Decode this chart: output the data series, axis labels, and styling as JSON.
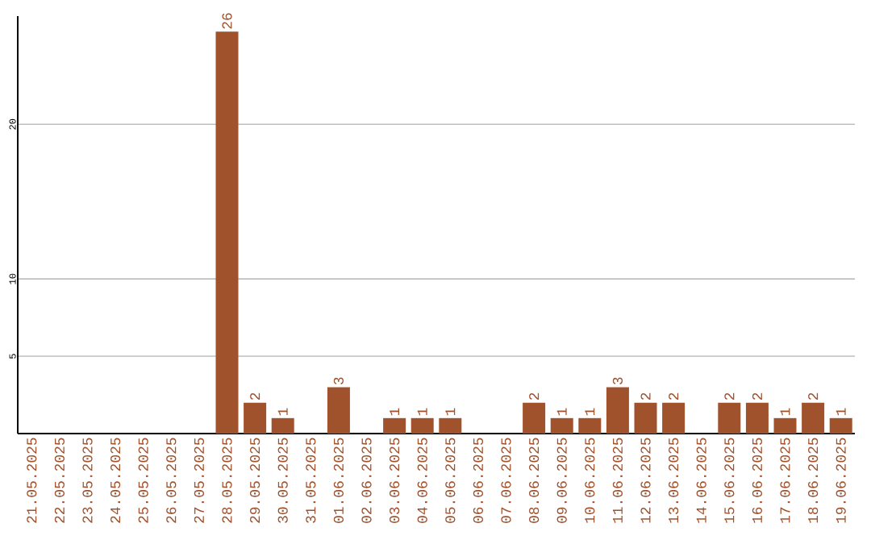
{
  "chart_data": {
    "type": "bar",
    "categories": [
      "21.05.2025",
      "22.05.2025",
      "23.05.2025",
      "24.05.2025",
      "25.05.2025",
      "26.05.2025",
      "27.05.2025",
      "28.05.2025",
      "29.05.2025",
      "30.05.2025",
      "31.05.2025",
      "01.06.2025",
      "02.06.2025",
      "03.06.2025",
      "04.06.2025",
      "05.06.2025",
      "06.06.2025",
      "07.06.2025",
      "08.06.2025",
      "09.06.2025",
      "10.06.2025",
      "11.06.2025",
      "12.06.2025",
      "13.06.2025",
      "14.06.2025",
      "15.06.2025",
      "16.06.2025",
      "17.06.2025",
      "18.06.2025",
      "19.06.2025"
    ],
    "values": [
      0,
      0,
      0,
      0,
      0,
      0,
      0,
      26,
      2,
      1,
      0,
      3,
      0,
      1,
      1,
      1,
      0,
      0,
      2,
      1,
      1,
      3,
      2,
      2,
      0,
      2,
      2,
      1,
      2,
      1
    ],
    "value_labels": [
      null,
      null,
      null,
      null,
      null,
      null,
      null,
      "26",
      "2",
      "1",
      null,
      "3",
      null,
      "1",
      "1",
      "1",
      null,
      null,
      "2",
      "1",
      "1",
      "3",
      "2",
      "2",
      null,
      "2",
      "2",
      "1",
      "2",
      "1"
    ],
    "color": "#a0522d",
    "ylim": [
      0,
      27
    ],
    "yticks": [
      5,
      10,
      20
    ],
    "grid": "y"
  }
}
